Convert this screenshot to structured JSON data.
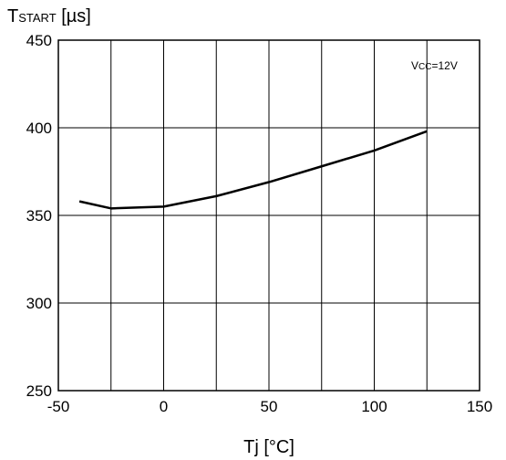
{
  "chart_data": {
    "type": "line",
    "title": "",
    "ylabel": {
      "main": "T",
      "sub": "START",
      "unit": " [µs]"
    },
    "xlabel": "Tj [°C]",
    "annotation": {
      "main": "V",
      "sub": "CC",
      "rest": "=12V"
    },
    "xlim": [
      -50,
      150
    ],
    "ylim": [
      250,
      450
    ],
    "grid": true,
    "x_ticks": [
      -50,
      -25,
      0,
      25,
      50,
      75,
      100,
      125,
      150
    ],
    "x_tick_labels": [
      "-50",
      "",
      "0",
      "",
      "50",
      "",
      "100",
      "",
      "150"
    ],
    "y_ticks": [
      250,
      300,
      350,
      400,
      450
    ],
    "y_tick_labels": [
      "250",
      "300",
      "350",
      "400",
      "450"
    ],
    "series": [
      {
        "name": "",
        "x": [
          -40,
          -25,
          0,
          25,
          50,
          75,
          100,
          125
        ],
        "y": [
          358,
          354,
          355,
          361,
          369,
          378,
          387,
          398
        ]
      }
    ],
    "colors": {
      "line": "#000000",
      "grid": "#000000",
      "background": "#ffffff"
    }
  }
}
